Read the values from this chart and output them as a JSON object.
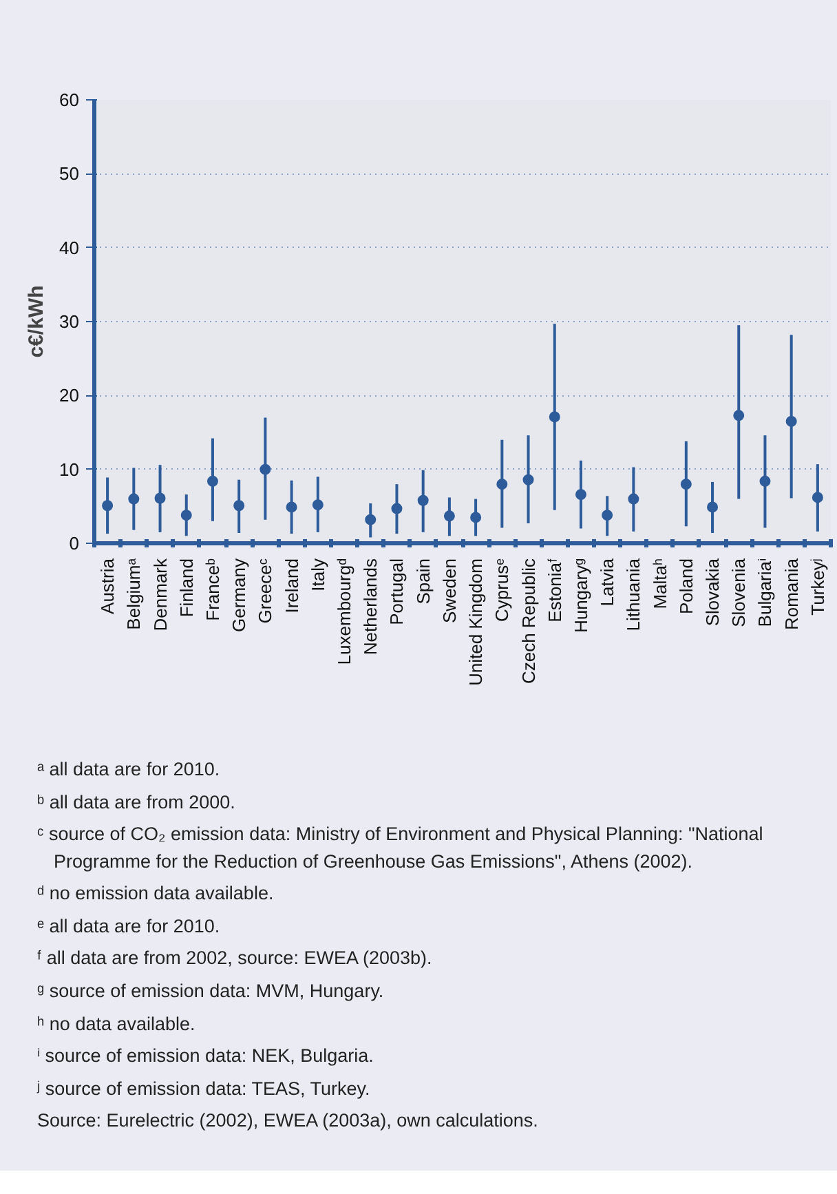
{
  "chart_data": {
    "type": "scatter",
    "ylabel": "c€/kWh",
    "categories": [
      "Austria",
      "Belgiumᵃ",
      "Denmark",
      "Finland",
      "Franceᵇ",
      "Germany",
      "Greeceᶜ",
      "Ireland",
      "Italy",
      "Luxembourgᵈ",
      "Netherlands",
      "Portugal",
      "Spain",
      "Sweden",
      "United Kingdom",
      "Cyprusᵉ",
      "Czech Republic",
      "Estoniaᶠ",
      "Hungaryᵍ",
      "Latvia",
      "Lithuania",
      "Maltaʰ",
      "Poland",
      "Slovakia",
      "Slovenia",
      "Bulgariaⁱ",
      "Romania",
      "Turkeyʲ"
    ],
    "series": [
      {
        "color": "#2e5c9a",
        "values": [
          5.1,
          6.0,
          6.1,
          3.8,
          8.4,
          5.1,
          10.0,
          4.9,
          5.2,
          null,
          3.2,
          4.7,
          5.8,
          3.7,
          3.5,
          8.0,
          8.6,
          17.1,
          6.6,
          3.8,
          6.0,
          null,
          8.0,
          4.9,
          17.3,
          8.4,
          16.5,
          6.2
        ],
        "errors": [
          [
            1.3,
            8.9
          ],
          [
            1.8,
            10.2
          ],
          [
            1.5,
            10.6
          ],
          [
            1.0,
            6.6
          ],
          [
            3.0,
            14.2
          ],
          [
            1.4,
            8.6
          ],
          [
            3.2,
            17.0
          ],
          [
            1.3,
            8.5
          ],
          [
            1.5,
            9.0
          ],
          null,
          [
            0.8,
            5.4
          ],
          [
            1.3,
            8.0
          ],
          [
            1.5,
            9.9
          ],
          [
            1.0,
            6.2
          ],
          [
            1.0,
            6.0
          ],
          [
            2.1,
            14.0
          ],
          [
            2.7,
            14.6
          ],
          [
            4.5,
            29.7
          ],
          [
            2.0,
            11.2
          ],
          [
            1.0,
            6.4
          ],
          [
            1.6,
            10.3
          ],
          null,
          [
            2.3,
            13.8
          ],
          [
            1.4,
            8.3
          ],
          [
            6.0,
            29.5
          ],
          [
            2.1,
            14.6
          ],
          [
            6.1,
            28.2
          ],
          [
            1.6,
            10.7
          ]
        ]
      }
    ],
    "ylim": [
      0,
      60
    ],
    "yticks": [
      0,
      10,
      20,
      30,
      40,
      50,
      60
    ],
    "grid": "y",
    "marker": "circle",
    "annotations": [
      "ᵃ all data are for 2010.",
      "ᵇ all data are from 2000.",
      "ᶜ source of CO₂ emission data: Ministry of Environment and Physical Planning: \"National Programme for the Reduction of Greenhouse Gas Emissions\", Athens (2002).",
      "ᵈ no emission data available.",
      "ᵉ all data are for 2010.",
      "ᶠ all data are from 2002, source: EWEA (2003b).",
      "ᵍ source of emission data: MVM, Hungary.",
      "ʰ no data available.",
      "ⁱ source of emission data: NEK, Bulgaria.",
      "ʲ source of emission data: TEAS, Turkey.",
      "Source: Eurelectric (2002), EWEA (2003a), own calculations."
    ]
  }
}
